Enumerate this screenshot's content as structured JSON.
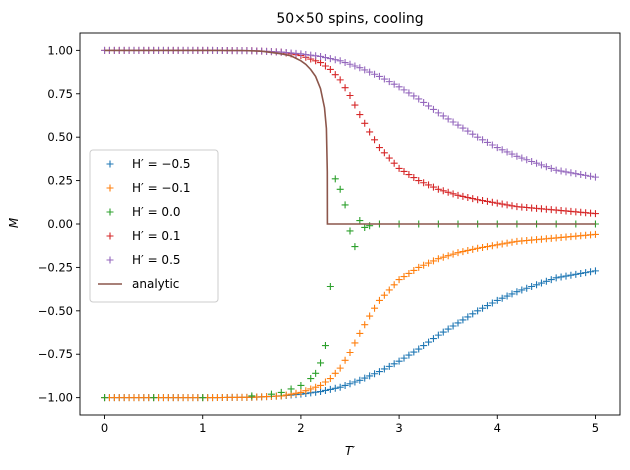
{
  "chart_data": {
    "type": "scatter",
    "title": "50×50 spins, cooling",
    "xlabel": "T′",
    "ylabel": "M",
    "xlim": [
      -0.25,
      5.25
    ],
    "ylim": [
      -1.1,
      1.1
    ],
    "xticks": [
      0,
      1,
      2,
      3,
      4,
      5
    ],
    "xtick_labels": [
      "0",
      "1",
      "2",
      "3",
      "4",
      "5"
    ],
    "yticks": [
      -1.0,
      -0.75,
      -0.5,
      -0.25,
      0.0,
      0.25,
      0.5,
      0.75,
      1.0
    ],
    "ytick_labels": [
      "−1.00",
      "−0.75",
      "−0.50",
      "−0.25",
      "0.00",
      "0.25",
      "0.50",
      "0.75",
      "1.00"
    ],
    "grid": false,
    "legend_position": "center-left",
    "series": [
      {
        "name": "H′ = −0.5",
        "marker": "+",
        "color": "#1f77b4",
        "x": [
          0.0,
          0.5,
          1.0,
          1.5,
          1.8,
          2.0,
          2.2,
          2.4,
          2.6,
          2.8,
          3.0,
          3.2,
          3.4,
          3.6,
          3.8,
          4.0,
          4.2,
          4.4,
          4.6,
          4.8,
          5.0
        ],
        "y": [
          -1.0,
          -1.0,
          -1.0,
          -0.998,
          -0.99,
          -0.98,
          -0.965,
          -0.94,
          -0.9,
          -0.85,
          -0.79,
          -0.72,
          -0.64,
          -0.57,
          -0.5,
          -0.44,
          -0.39,
          -0.35,
          -0.31,
          -0.29,
          -0.27
        ]
      },
      {
        "name": "H′ = −0.1",
        "marker": "+",
        "color": "#ff7f0e",
        "x": [
          0.0,
          0.5,
          1.0,
          1.5,
          1.8,
          2.0,
          2.2,
          2.3,
          2.4,
          2.5,
          2.6,
          2.7,
          2.8,
          2.9,
          3.0,
          3.2,
          3.4,
          3.6,
          3.8,
          4.0,
          4.2,
          4.4,
          4.6,
          4.8,
          5.0
        ],
        "y": [
          -1.0,
          -1.0,
          -1.0,
          -0.998,
          -0.99,
          -0.97,
          -0.93,
          -0.89,
          -0.83,
          -0.74,
          -0.63,
          -0.53,
          -0.44,
          -0.38,
          -0.32,
          -0.25,
          -0.2,
          -0.165,
          -0.14,
          -0.12,
          -0.1,
          -0.09,
          -0.08,
          -0.07,
          -0.06
        ]
      },
      {
        "name": "H′ = 0.0",
        "marker": "+",
        "color": "#2ca02c",
        "x": [
          0.0,
          0.5,
          1.0,
          1.5,
          1.7,
          1.8,
          1.9,
          2.0,
          2.1,
          2.15,
          2.2,
          2.25,
          2.3,
          2.35,
          2.4,
          2.45,
          2.5,
          2.55,
          2.6,
          2.65,
          2.7,
          2.8,
          3.0,
          3.2,
          3.4,
          3.6,
          3.8,
          4.0,
          4.2,
          4.4,
          4.6,
          4.8,
          5.0
        ],
        "y": [
          -1.0,
          -1.0,
          -1.0,
          -0.99,
          -0.98,
          -0.97,
          -0.95,
          -0.93,
          -0.89,
          -0.86,
          -0.8,
          -0.7,
          -0.36,
          0.26,
          0.2,
          0.11,
          -0.04,
          -0.13,
          0.02,
          -0.02,
          -0.01,
          0.0,
          0.0,
          0.0,
          0.0,
          0.0,
          0.0,
          0.0,
          0.0,
          0.0,
          0.0,
          0.0,
          0.0
        ]
      },
      {
        "name": "H′ = 0.1",
        "marker": "+",
        "color": "#d62728",
        "x": [
          0.0,
          0.5,
          1.0,
          1.5,
          1.8,
          2.0,
          2.2,
          2.3,
          2.4,
          2.5,
          2.6,
          2.7,
          2.8,
          2.9,
          3.0,
          3.2,
          3.4,
          3.6,
          3.8,
          4.0,
          4.2,
          4.4,
          4.6,
          4.8,
          5.0
        ],
        "y": [
          1.0,
          1.0,
          1.0,
          0.998,
          0.99,
          0.97,
          0.93,
          0.89,
          0.83,
          0.74,
          0.63,
          0.53,
          0.44,
          0.38,
          0.32,
          0.25,
          0.2,
          0.165,
          0.14,
          0.12,
          0.1,
          0.09,
          0.08,
          0.07,
          0.06
        ]
      },
      {
        "name": "H′ = 0.5",
        "marker": "+",
        "color": "#9467bd",
        "x": [
          0.0,
          0.5,
          1.0,
          1.5,
          1.8,
          2.0,
          2.2,
          2.4,
          2.6,
          2.8,
          3.0,
          3.2,
          3.4,
          3.6,
          3.8,
          4.0,
          4.2,
          4.4,
          4.6,
          4.8,
          5.0
        ],
        "y": [
          1.0,
          1.0,
          1.0,
          0.998,
          0.99,
          0.98,
          0.965,
          0.94,
          0.9,
          0.85,
          0.79,
          0.72,
          0.64,
          0.57,
          0.5,
          0.44,
          0.39,
          0.35,
          0.31,
          0.29,
          0.27
        ]
      },
      {
        "name": "analytic",
        "marker": "line",
        "color": "#8c564b",
        "x": [
          0.0,
          1.0,
          1.4,
          1.6,
          1.8,
          1.9,
          2.0,
          2.05,
          2.1,
          2.15,
          2.2,
          2.24,
          2.26,
          2.269,
          2.27,
          2.5,
          3.0,
          4.0,
          5.0
        ],
        "y": [
          1.0,
          1.0,
          0.999,
          0.995,
          0.98,
          0.968,
          0.94,
          0.92,
          0.89,
          0.85,
          0.78,
          0.67,
          0.55,
          0.3,
          0.0,
          0.0,
          0.0,
          0.0,
          0.0
        ]
      }
    ]
  }
}
